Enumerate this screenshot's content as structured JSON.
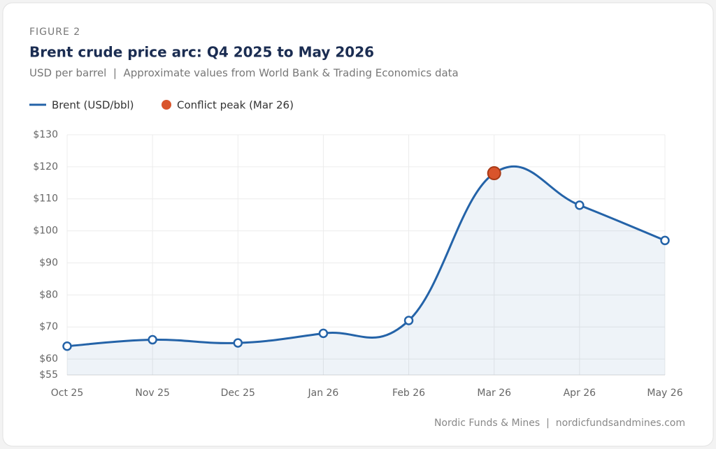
{
  "chart_data": {
    "type": "line",
    "figure_label": "FIGURE 2",
    "title": "Brent crude price arc: Q4 2025 to May 2026",
    "subtitle": "USD per barrel  |  Approximate values from World Bank & Trading Economics data",
    "source": "Nordic Funds & Mines  |  nordicfundsandmines.com",
    "categories": [
      "Oct 25",
      "Nov 25",
      "Dec 25",
      "Jan 26",
      "Feb 26",
      "Mar 26",
      "Apr 26",
      "May 26"
    ],
    "series": [
      {
        "name": "Brent (USD/bbl)",
        "color": "#2463a8",
        "values": [
          64,
          66,
          65,
          68,
          72,
          118,
          108,
          97
        ]
      },
      {
        "name": "Conflict peak (Mar 26)",
        "color": "#d9542b",
        "values": [
          null,
          null,
          null,
          null,
          null,
          118,
          null,
          null
        ]
      }
    ],
    "ylim": [
      55,
      130
    ],
    "yticks": [
      {
        "value": 55,
        "label": "$55"
      },
      {
        "value": 60,
        "label": "$60"
      },
      {
        "value": 70,
        "label": "$70"
      },
      {
        "value": 80,
        "label": "$80"
      },
      {
        "value": 90,
        "label": "$90"
      },
      {
        "value": 100,
        "label": "$100"
      },
      {
        "value": 110,
        "label": "$110"
      },
      {
        "value": 120,
        "label": "$120"
      },
      {
        "value": 130,
        "label": "$130"
      }
    ],
    "grid": true,
    "area": true
  }
}
